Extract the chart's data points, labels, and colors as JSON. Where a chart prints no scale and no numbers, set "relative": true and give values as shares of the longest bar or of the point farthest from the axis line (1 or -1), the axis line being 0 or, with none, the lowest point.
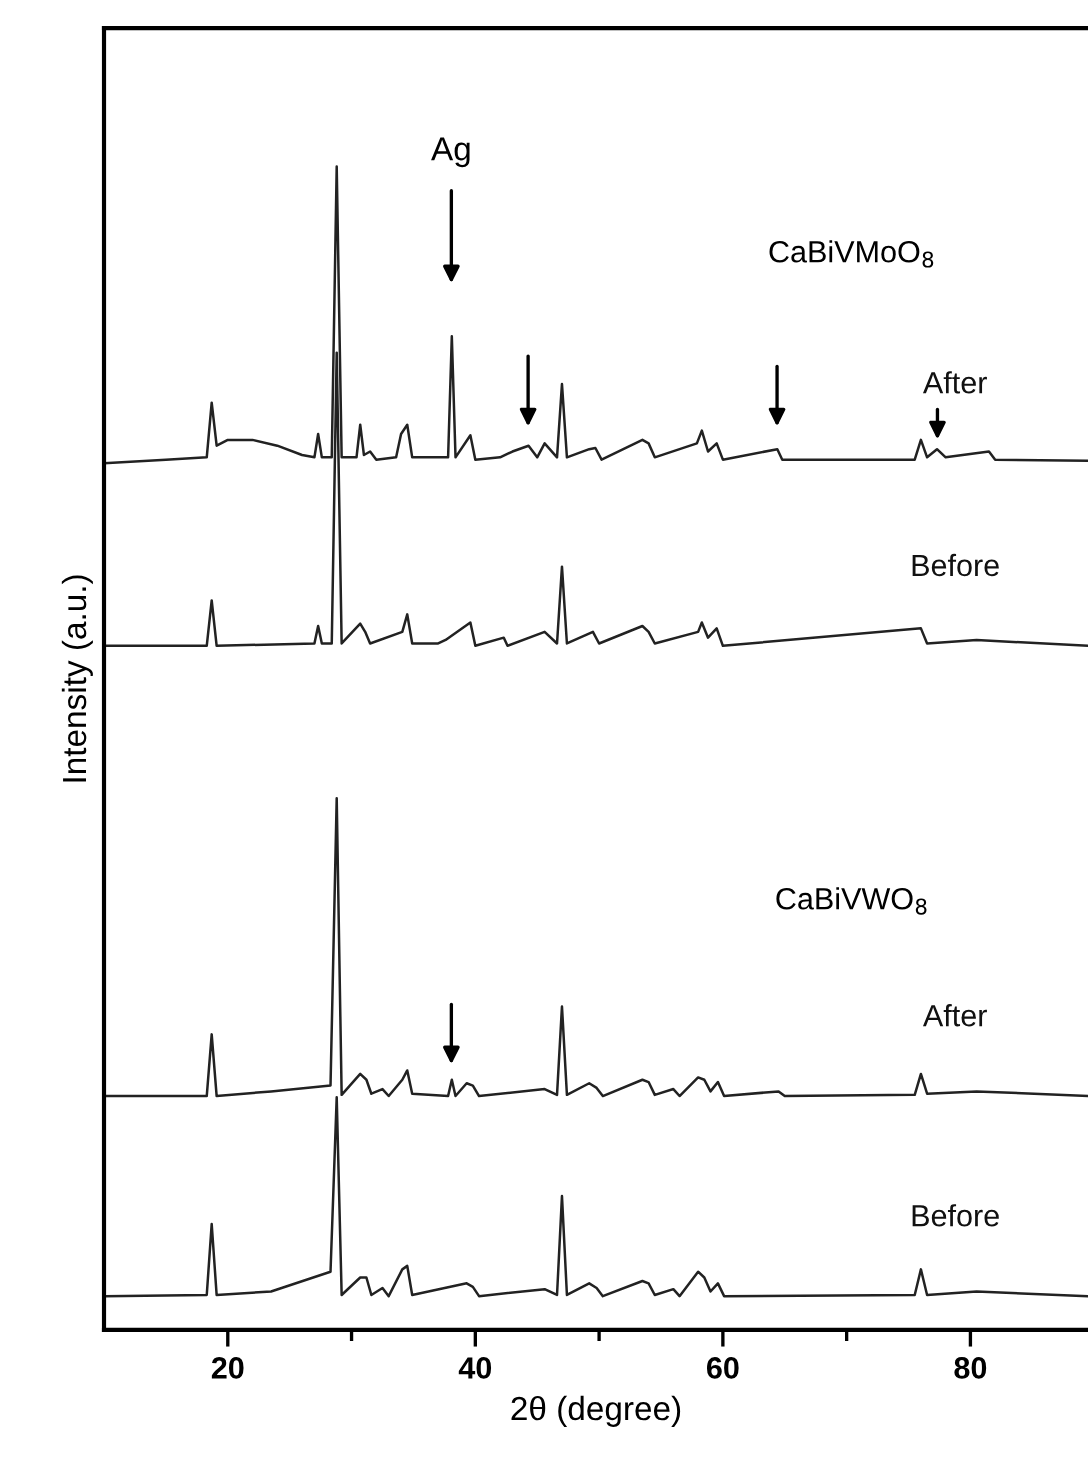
{
  "chart_data": {
    "type": "line",
    "relative": true,
    "xlabel": "2θ (degree)",
    "ylabel": "Intensity (a.u.)",
    "xlim": [
      10,
      89.5
    ],
    "xticks": [
      20,
      40,
      60,
      80
    ],
    "grid": false,
    "legend": false,
    "marker": "none",
    "line_style": "solid",
    "annotations": [
      "CaBiVMoO$_{8}$",
      "CaBiVWO$_{8}$",
      "Ag"
    ],
    "series": [
      {
        "name": "After",
        "color": "#222222",
        "x": [
          10,
          15,
          18.3,
          18.7,
          19.1,
          20,
          22,
          24,
          26,
          27,
          27.3,
          27.6,
          28.4,
          28.8,
          29.2,
          30.4,
          30.7,
          31.0,
          31.5,
          32,
          33.6,
          34.0,
          34.5,
          34.9,
          37.8,
          38.1,
          38.4,
          39.6,
          40,
          42,
          43.0,
          44.3,
          45,
          45.6,
          46.6,
          47.0,
          47.4,
          49.2,
          49.7,
          50.2,
          53.5,
          54.0,
          54.5,
          57.9,
          58.3,
          58.8,
          59.5,
          60,
          64.4,
          64.8,
          75.5,
          76.0,
          76.5,
          77.3,
          78,
          81.5,
          82,
          89.5
        ],
        "values": [
          0.745,
          0.748,
          0.75,
          0.797,
          0.76,
          0.765,
          0.765,
          0.76,
          0.752,
          0.75,
          0.77,
          0.75,
          0.75,
          1.0,
          0.75,
          0.75,
          0.778,
          0.752,
          0.755,
          0.748,
          0.75,
          0.77,
          0.778,
          0.75,
          0.75,
          0.854,
          0.75,
          0.769,
          0.748,
          0.75,
          0.755,
          0.76,
          0.75,
          0.762,
          0.75,
          0.813,
          0.75,
          0.757,
          0.758,
          0.748,
          0.765,
          0.762,
          0.75,
          0.762,
          0.773,
          0.755,
          0.762,
          0.748,
          0.757,
          0.748,
          0.748,
          0.765,
          0.75,
          0.757,
          0.75,
          0.755,
          0.748,
          0.747
        ]
      },
      {
        "name": "Before",
        "color": "#222222",
        "x": [
          10,
          18.3,
          18.7,
          19.1,
          27,
          27.3,
          27.6,
          28.4,
          28.8,
          29.2,
          30.7,
          31.1,
          31.5,
          34.1,
          34.5,
          34.9,
          37,
          37.6,
          39.6,
          40,
          42.3,
          42.6,
          45.6,
          46.6,
          47.0,
          47.4,
          49.5,
          50,
          53.5,
          54,
          54.5,
          58,
          58.3,
          58.8,
          59.5,
          60,
          76,
          76.5,
          80.5,
          89.5
        ],
        "values": [
          0.588,
          0.588,
          0.627,
          0.588,
          0.59,
          0.605,
          0.59,
          0.59,
          0.84,
          0.59,
          0.607,
          0.6,
          0.59,
          0.6,
          0.615,
          0.59,
          0.59,
          0.593,
          0.608,
          0.588,
          0.595,
          0.588,
          0.6,
          0.59,
          0.656,
          0.59,
          0.6,
          0.59,
          0.605,
          0.6,
          0.59,
          0.6,
          0.608,
          0.595,
          0.603,
          0.588,
          0.603,
          0.59,
          0.593,
          0.588
        ]
      },
      {
        "name": "After",
        "color": "#222222",
        "x": [
          10,
          18.3,
          18.7,
          19.1,
          23.5,
          28.3,
          28.8,
          29.2,
          30.7,
          31.2,
          31.6,
          32.5,
          33,
          34.1,
          34.5,
          34.9,
          37.8,
          38.1,
          38.4,
          39.3,
          39.8,
          40.3,
          45.6,
          46.6,
          47.0,
          47.4,
          49.2,
          49.8,
          50.3,
          53.5,
          54,
          54.5,
          56,
          56.5,
          58,
          58.5,
          59.0,
          59.6,
          60.1,
          64.5,
          65,
          75.5,
          76,
          76.5,
          80.5,
          89.5
        ],
        "values": [
          0.201,
          0.201,
          0.254,
          0.201,
          0.205,
          0.21,
          0.457,
          0.202,
          0.22,
          0.215,
          0.203,
          0.207,
          0.201,
          0.215,
          0.223,
          0.203,
          0.201,
          0.215,
          0.201,
          0.212,
          0.21,
          0.201,
          0.207,
          0.202,
          0.278,
          0.202,
          0.212,
          0.208,
          0.201,
          0.215,
          0.213,
          0.202,
          0.207,
          0.201,
          0.217,
          0.215,
          0.205,
          0.213,
          0.201,
          0.205,
          0.201,
          0.202,
          0.22,
          0.203,
          0.205,
          0.201
        ]
      },
      {
        "name": "Before",
        "color": "#222222",
        "x": [
          10,
          18.3,
          18.7,
          19.1,
          23.5,
          28.3,
          28.8,
          29.2,
          30.7,
          31.2,
          31.6,
          32.5,
          33,
          34.1,
          34.5,
          34.9,
          39.3,
          39.8,
          40.3,
          45.6,
          46.6,
          47.0,
          47.4,
          49.2,
          49.8,
          50.3,
          53.5,
          54,
          54.5,
          56,
          56.5,
          58,
          58.5,
          59.0,
          59.6,
          60.1,
          75.5,
          76,
          76.5,
          80.5,
          89.5
        ],
        "values": [
          0.029,
          0.03,
          0.091,
          0.03,
          0.033,
          0.05,
          0.2,
          0.03,
          0.045,
          0.045,
          0.03,
          0.036,
          0.029,
          0.052,
          0.055,
          0.03,
          0.04,
          0.037,
          0.029,
          0.035,
          0.03,
          0.115,
          0.03,
          0.04,
          0.036,
          0.029,
          0.042,
          0.04,
          0.03,
          0.035,
          0.029,
          0.05,
          0.045,
          0.033,
          0.04,
          0.029,
          0.03,
          0.052,
          0.03,
          0.033,
          0.029
        ]
      }
    ]
  }
}
